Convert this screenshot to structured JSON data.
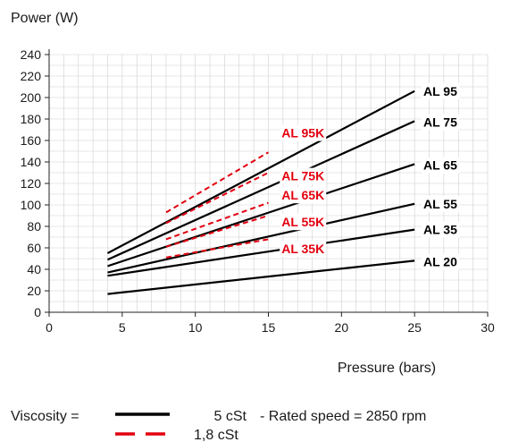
{
  "chart_data": {
    "type": "line",
    "ylabel": "Power (W)",
    "xlabel": "Pressure (bars)",
    "xlim": [
      0,
      30
    ],
    "ylim": [
      0,
      240
    ],
    "x_ticks": [
      0,
      5,
      10,
      15,
      20,
      25,
      30
    ],
    "y_ticks": [
      0,
      20,
      40,
      60,
      80,
      100,
      120,
      140,
      160,
      180,
      200,
      220,
      240
    ],
    "grid": true,
    "colors": {
      "solid": "#000000",
      "dashed": "#e3000f"
    },
    "series": [
      {
        "name": "AL 95",
        "style": "solid",
        "x": [
          4,
          25
        ],
        "y": [
          55,
          206
        ]
      },
      {
        "name": "AL 75",
        "style": "solid",
        "x": [
          4,
          25
        ],
        "y": [
          49,
          178
        ]
      },
      {
        "name": "AL 65",
        "style": "solid",
        "x": [
          4,
          25
        ],
        "y": [
          43,
          138
        ]
      },
      {
        "name": "AL 55",
        "style": "solid",
        "x": [
          4,
          25
        ],
        "y": [
          37,
          101
        ]
      },
      {
        "name": "AL 35",
        "style": "solid",
        "x": [
          4,
          25
        ],
        "y": [
          34,
          77
        ]
      },
      {
        "name": "AL 20",
        "style": "solid",
        "x": [
          4,
          25
        ],
        "y": [
          17,
          48
        ]
      },
      {
        "name": "AL 95K",
        "style": "dashed",
        "x": [
          8,
          15
        ],
        "y": [
          93,
          149
        ]
      },
      {
        "name": "AL 75K",
        "style": "dashed",
        "x": [
          8,
          15
        ],
        "y": [
          83,
          130
        ]
      },
      {
        "name": "AL 65K",
        "style": "dashed",
        "x": [
          8,
          15
        ],
        "y": [
          68,
          102
        ]
      },
      {
        "name": "AL 55K",
        "style": "dashed",
        "x": [
          8,
          15
        ],
        "y": [
          61,
          90
        ]
      },
      {
        "name": "AL 35K",
        "style": "dashed",
        "x": [
          8,
          15
        ],
        "y": [
          51,
          68
        ]
      }
    ],
    "labels": [
      {
        "text": "AL 95",
        "x": 25.6,
        "y": 206,
        "style": "solid"
      },
      {
        "text": "AL 75",
        "x": 25.6,
        "y": 177,
        "style": "solid"
      },
      {
        "text": "AL 65",
        "x": 25.6,
        "y": 137,
        "style": "solid"
      },
      {
        "text": "AL 55",
        "x": 25.6,
        "y": 101,
        "style": "solid"
      },
      {
        "text": "AL 35",
        "x": 25.6,
        "y": 77,
        "style": "solid"
      },
      {
        "text": "AL 20",
        "x": 25.6,
        "y": 47,
        "style": "solid"
      },
      {
        "text": "AL 95K",
        "x": 15.9,
        "y": 167,
        "style": "dashed"
      },
      {
        "text": "AL 75K",
        "x": 15.9,
        "y": 127,
        "style": "dashed"
      },
      {
        "text": "AL 65K",
        "x": 15.9,
        "y": 109,
        "style": "dashed"
      },
      {
        "text": "AL 55K",
        "x": 15.9,
        "y": 84,
        "style": "dashed"
      },
      {
        "text": "AL 35K",
        "x": 15.9,
        "y": 59,
        "style": "dashed"
      }
    ],
    "legend": {
      "prefix": "Viscosity =",
      "entries": [
        {
          "style": "solid",
          "label": "5 cSt"
        },
        {
          "style": "dashed",
          "label": "1,8 cSt"
        }
      ],
      "note": "- Rated speed = 2850 rpm"
    }
  }
}
